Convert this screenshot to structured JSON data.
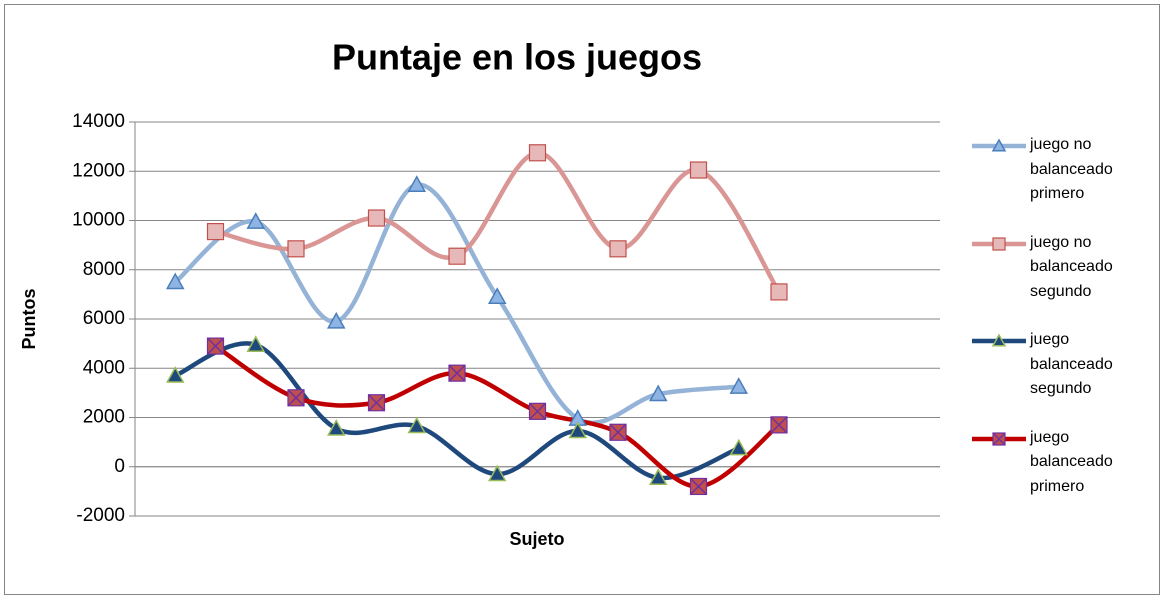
{
  "chart_data": {
    "type": "line",
    "title": "Puntaje en los juegos",
    "x_label": "Sujeto",
    "y_label": "Puntos",
    "xlim": [
      0,
      20
    ],
    "ylim": [
      -2000,
      14000
    ],
    "yticks": [
      -2000,
      0,
      2000,
      4000,
      6000,
      8000,
      10000,
      12000,
      14000
    ],
    "grid": true,
    "legend": "right",
    "smooth": true,
    "series": [
      {
        "name": "juego no balanceado primero",
        "color": "#95b3d7",
        "marker": "triangle",
        "marker_fill": "#8eb4e3",
        "marker_stroke": "#4a7ebb",
        "x": [
          1,
          3,
          5,
          7,
          9,
          11,
          13,
          15
        ],
        "values": [
          7500,
          9950,
          5900,
          11450,
          6900,
          1950,
          2950,
          3250
        ]
      },
      {
        "name": "juego no balanceado segundo",
        "color": "#d99694",
        "marker": "square",
        "marker_fill": "#e6b9b8",
        "marker_stroke": "#c0504d",
        "x": [
          2,
          4,
          6,
          8,
          10,
          12,
          14,
          16
        ],
        "values": [
          9550,
          8850,
          10100,
          8550,
          12750,
          8850,
          12050,
          7100
        ]
      },
      {
        "name": "juego balanceado segundo",
        "color": "#1f497d",
        "marker": "triangle",
        "marker_fill": "#1f497d",
        "marker_stroke": "#9bbb59",
        "x": [
          1,
          3,
          5,
          7,
          9,
          11,
          13,
          15
        ],
        "values": [
          3700,
          4950,
          1550,
          1650,
          -300,
          1450,
          -450,
          750
        ]
      },
      {
        "name": "juego balanceado primero",
        "color": "#c00000",
        "marker": "x-square",
        "marker_fill": "#c0504d",
        "marker_stroke": "#7030a0",
        "x": [
          2,
          4,
          6,
          8,
          10,
          12,
          14,
          16
        ],
        "values": [
          4900,
          2800,
          2600,
          3800,
          2250,
          1400,
          -800,
          1700
        ]
      }
    ]
  }
}
